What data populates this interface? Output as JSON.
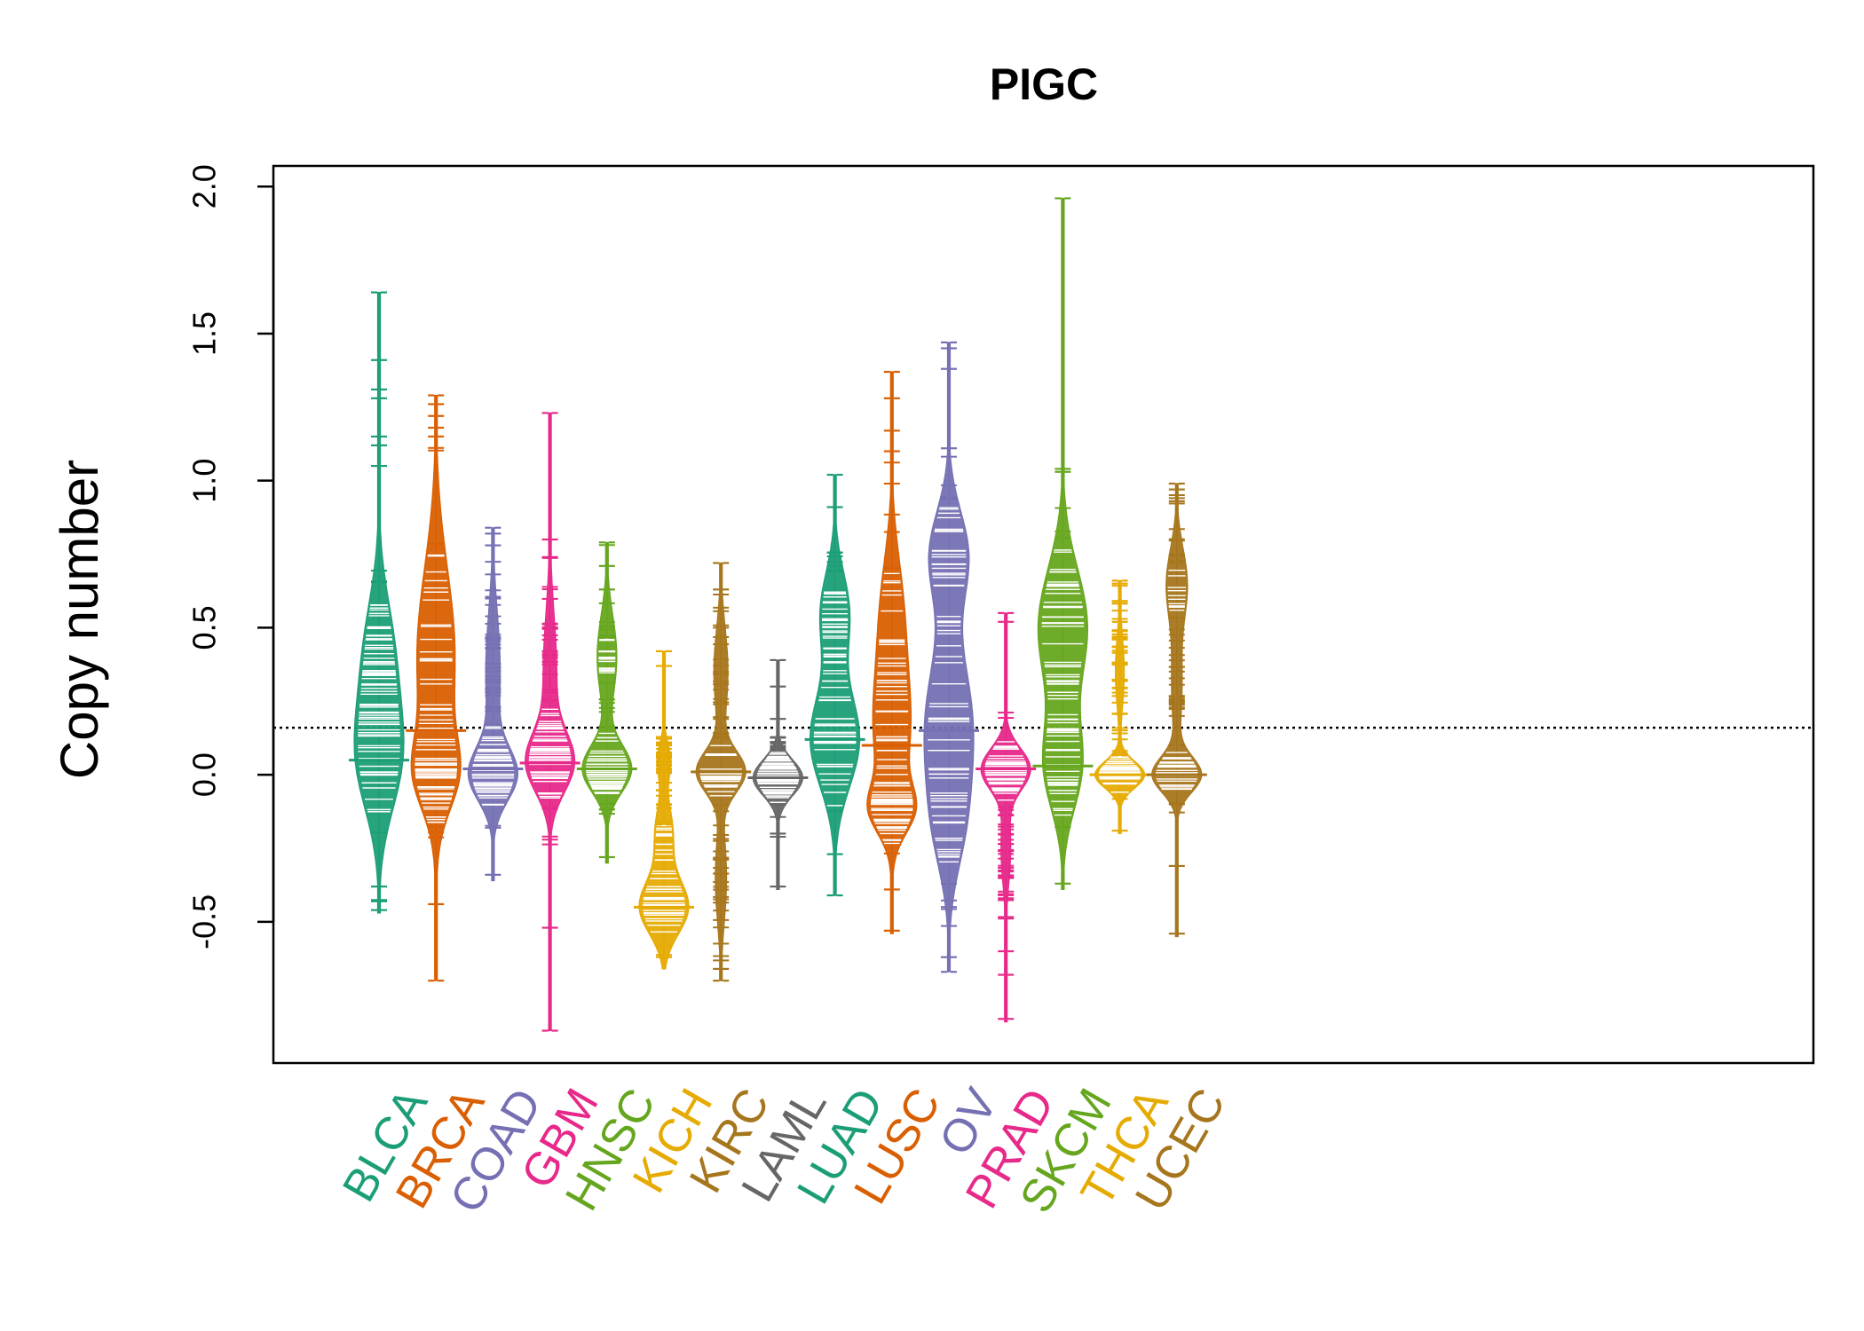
{
  "chart_data": {
    "type": "beanplot",
    "title": "PIGC",
    "xlabel": "",
    "ylabel": "Copy number",
    "ylim": [
      -0.98,
      2.07
    ],
    "yticks": [
      -0.5,
      0.0,
      0.5,
      1.0,
      1.5,
      2.0
    ],
    "ytick_labels": [
      "-0.5",
      "0.0",
      "0.5",
      "1.0",
      "1.5",
      "2.0"
    ],
    "reference_line": 0.16,
    "grid": false,
    "legend": "none",
    "categories": [
      "BLCA",
      "BRCA",
      "COAD",
      "GBM",
      "HNSC",
      "KICH",
      "KIRC",
      "LAML",
      "LUAD",
      "LUSC",
      "OV",
      "PRAD",
      "SKCM",
      "THCA",
      "UCEC"
    ],
    "series": [
      {
        "name": "BLCA",
        "color": "#1B9E77",
        "median": 0.05,
        "min": -0.47,
        "max": 1.64,
        "modes": [
          {
            "y": 0.05,
            "w": 0.35,
            "s": 0.18
          },
          {
            "y": 0.4,
            "w": 0.25,
            "s": 0.2
          }
        ],
        "outliers": [
          1.64,
          1.41,
          1.31,
          1.28,
          1.15,
          1.12,
          1.05,
          -0.38,
          -0.43,
          -0.46
        ]
      },
      {
        "name": "BRCA",
        "color": "#D95F02",
        "median": 0.15,
        "min": -0.7,
        "max": 1.29,
        "modes": [
          {
            "y": 0.0,
            "w": 0.3,
            "s": 0.12
          },
          {
            "y": 0.4,
            "w": 0.35,
            "s": 0.3
          }
        ],
        "outliers": [
          1.29,
          1.26,
          1.22,
          1.18,
          1.15,
          -0.44,
          -0.7
        ]
      },
      {
        "name": "COAD",
        "color": "#7570B3",
        "median": 0.02,
        "min": -0.36,
        "max": 0.84,
        "modes": [
          {
            "y": 0.0,
            "w": 0.8,
            "s": 0.09
          },
          {
            "y": 0.35,
            "w": 0.25,
            "s": 0.2
          }
        ],
        "outliers": [
          0.84,
          0.82,
          0.78,
          -0.34
        ]
      },
      {
        "name": "GBM",
        "color": "#E7298A",
        "median": 0.04,
        "min": -0.87,
        "max": 1.23,
        "modes": [
          {
            "y": 0.04,
            "w": 0.95,
            "s": 0.1
          },
          {
            "y": 0.35,
            "w": 0.28,
            "s": 0.2
          }
        ],
        "outliers": [
          1.23,
          0.8,
          0.74,
          -0.52,
          -0.87
        ]
      },
      {
        "name": "HNSC",
        "color": "#66A61E",
        "median": 0.02,
        "min": -0.3,
        "max": 0.79,
        "modes": [
          {
            "y": 0.02,
            "w": 0.75,
            "s": 0.08
          },
          {
            "y": 0.4,
            "w": 0.3,
            "s": 0.14
          }
        ],
        "outliers": [
          0.79,
          0.71,
          0.63,
          -0.28
        ]
      },
      {
        "name": "KICH",
        "color": "#E6AB02",
        "median": -0.45,
        "min": -0.66,
        "max": 0.42,
        "modes": [
          {
            "y": -0.45,
            "w": 0.95,
            "s": 0.09
          },
          {
            "y": -0.2,
            "w": 0.35,
            "s": 0.1
          },
          {
            "y": 0.05,
            "w": 0.25,
            "s": 0.06
          }
        ],
        "outliers": [
          0.42,
          0.37,
          0.11,
          -0.62
        ]
      },
      {
        "name": "KIRC",
        "color": "#A6761D",
        "median": 0.01,
        "min": -0.7,
        "max": 0.72,
        "modes": [
          {
            "y": 0.01,
            "w": 0.85,
            "s": 0.07
          },
          {
            "y": 0.35,
            "w": 0.25,
            "s": 0.15
          },
          {
            "y": -0.35,
            "w": 0.2,
            "s": 0.15
          }
        ],
        "outliers": [
          0.72,
          0.63,
          -0.66,
          -0.7
        ]
      },
      {
        "name": "LAML",
        "color": "#666666",
        "median": -0.01,
        "min": -0.39,
        "max": 0.39,
        "modes": [
          {
            "y": -0.01,
            "w": 1.0,
            "s": 0.06
          }
        ],
        "outliers": [
          0.39,
          0.3,
          0.19,
          -0.2,
          -0.38
        ]
      },
      {
        "name": "LUAD",
        "color": "#1B9E77",
        "median": 0.12,
        "min": -0.41,
        "max": 1.02,
        "modes": [
          {
            "y": 0.12,
            "w": 0.6,
            "s": 0.16
          },
          {
            "y": 0.55,
            "w": 0.35,
            "s": 0.14
          }
        ],
        "outliers": [
          1.02,
          0.91,
          -0.27,
          -0.41
        ]
      },
      {
        "name": "LUSC",
        "color": "#D95F02",
        "median": 0.1,
        "min": -0.54,
        "max": 1.37,
        "modes": [
          {
            "y": -0.12,
            "w": 0.4,
            "s": 0.08
          },
          {
            "y": 0.15,
            "w": 0.4,
            "s": 0.2
          },
          {
            "y": 0.55,
            "w": 0.25,
            "s": 0.2
          }
        ],
        "outliers": [
          1.37,
          1.28,
          1.17,
          1.1,
          -0.39,
          -0.53
        ]
      },
      {
        "name": "OV",
        "color": "#7570B3",
        "median": 0.15,
        "min": -0.67,
        "max": 1.47,
        "modes": [
          {
            "y": 0.15,
            "w": 0.45,
            "s": 0.25
          },
          {
            "y": 0.75,
            "w": 0.35,
            "s": 0.15
          },
          {
            "y": -0.2,
            "w": 0.15,
            "s": 0.15
          }
        ],
        "outliers": [
          1.47,
          1.45,
          1.38,
          1.11,
          -0.62,
          -0.67
        ]
      },
      {
        "name": "PRAD",
        "color": "#E7298A",
        "median": 0.02,
        "min": -0.84,
        "max": 0.55,
        "modes": [
          {
            "y": 0.02,
            "w": 1.0,
            "s": 0.07
          },
          {
            "y": -0.25,
            "w": 0.2,
            "s": 0.12
          }
        ],
        "outliers": [
          0.55,
          0.52,
          -0.42,
          -0.6,
          -0.68,
          -0.83
        ]
      },
      {
        "name": "SKCM",
        "color": "#66A61E",
        "median": 0.03,
        "min": -0.39,
        "max": 1.96,
        "modes": [
          {
            "y": 0.03,
            "w": 0.3,
            "s": 0.15
          },
          {
            "y": 0.5,
            "w": 0.4,
            "s": 0.2
          }
        ],
        "outliers": [
          1.96,
          1.04,
          1.03,
          -0.37
        ]
      },
      {
        "name": "THCA",
        "color": "#E6AB02",
        "median": 0.0,
        "min": -0.2,
        "max": 0.66,
        "modes": [
          {
            "y": 0.0,
            "w": 1.0,
            "s": 0.045
          },
          {
            "y": 0.35,
            "w": 0.18,
            "s": 0.12
          }
        ],
        "outliers": [
          0.66,
          0.65,
          0.52,
          -0.19
        ]
      },
      {
        "name": "UCEC",
        "color": "#A6761D",
        "median": 0.0,
        "min": -0.55,
        "max": 0.99,
        "modes": [
          {
            "y": 0.0,
            "w": 0.7,
            "s": 0.06
          },
          {
            "y": 0.65,
            "w": 0.3,
            "s": 0.12
          },
          {
            "y": 0.3,
            "w": 0.15,
            "s": 0.15
          }
        ],
        "outliers": [
          0.99,
          0.97,
          0.93,
          -0.31,
          -0.54
        ]
      }
    ]
  }
}
